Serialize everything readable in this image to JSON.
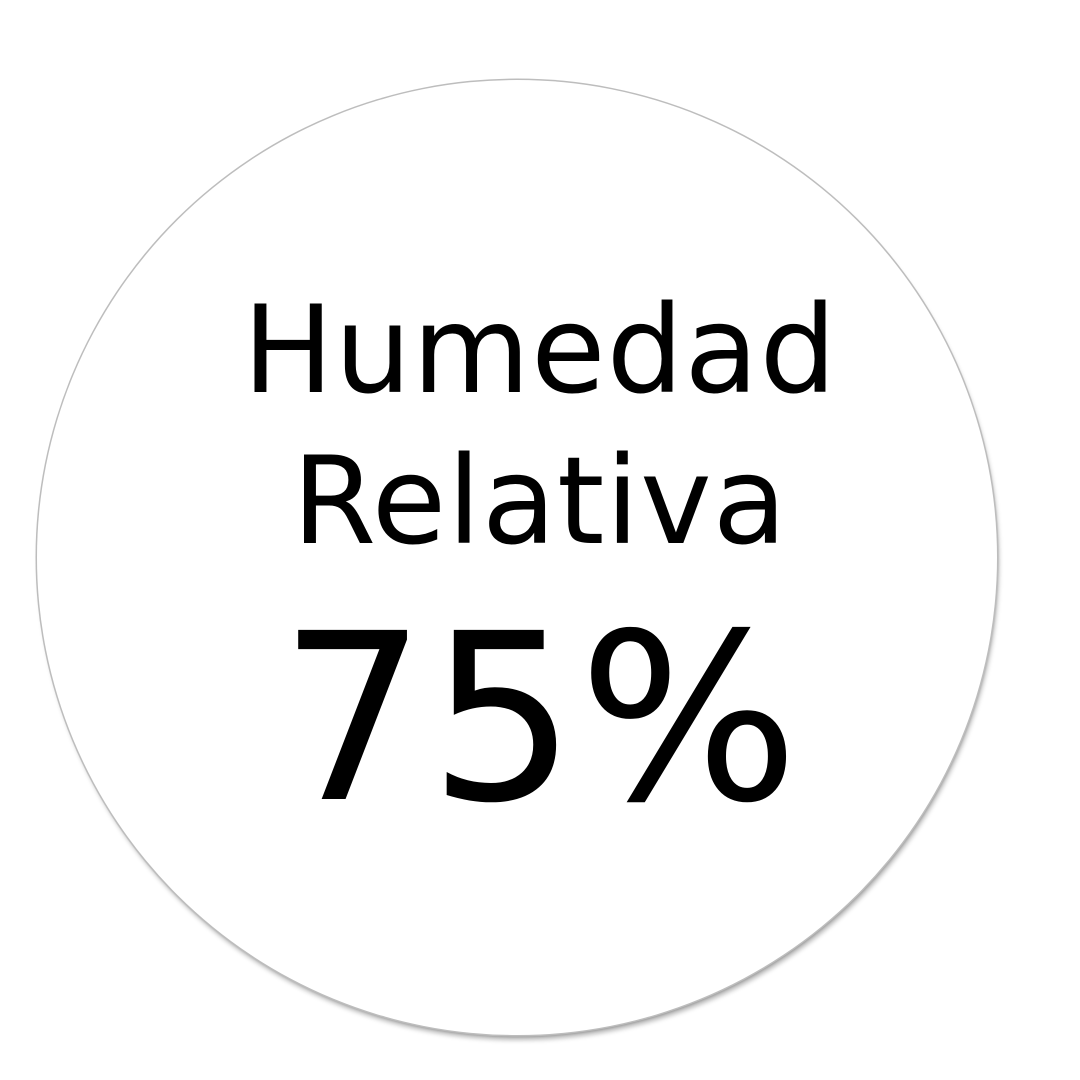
{
  "widget": {
    "title_line_1": "Humedad",
    "title_line_2": "Relativa",
    "reading": "75%"
  },
  "humidity_percent": 75,
  "colors": {
    "background": "#ffffff",
    "text": "#000000",
    "circle_outline": "#bdbdbd"
  }
}
